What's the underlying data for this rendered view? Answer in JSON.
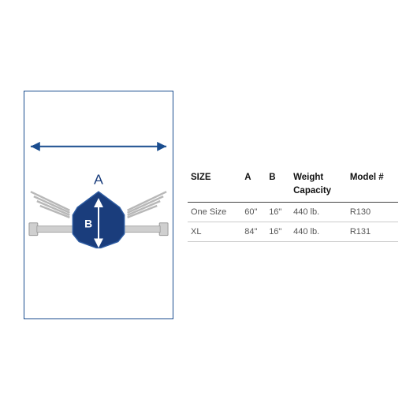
{
  "diagram": {
    "label_A": "A",
    "label_B": "B",
    "border_color": "#1a4d8f",
    "body_color": "#1a3d7c",
    "body_stroke": "#2c5aa0",
    "arrow_color": "#1a4d8f",
    "strap_color": "#b8b8b8",
    "bar_color": "#888888",
    "end_plate": "#cfcfcf",
    "label_color": "#1a3d7c",
    "label_b_color": "#ffffff",
    "label_fontsize_A": 18,
    "label_fontsize_B": 14
  },
  "table": {
    "columns": [
      "SIZE",
      "A",
      "B",
      "Weight Capacity",
      "Model #"
    ],
    "rows": [
      [
        "One Size",
        "60\"",
        "16\"",
        "440 lb.",
        "R130"
      ],
      [
        "XL",
        "84\"",
        "16\"",
        "440 lb.",
        "R131"
      ]
    ],
    "header_color": "#111111",
    "row_color": "#555555",
    "border_color": "#444444",
    "row_border": "#cccccc"
  }
}
